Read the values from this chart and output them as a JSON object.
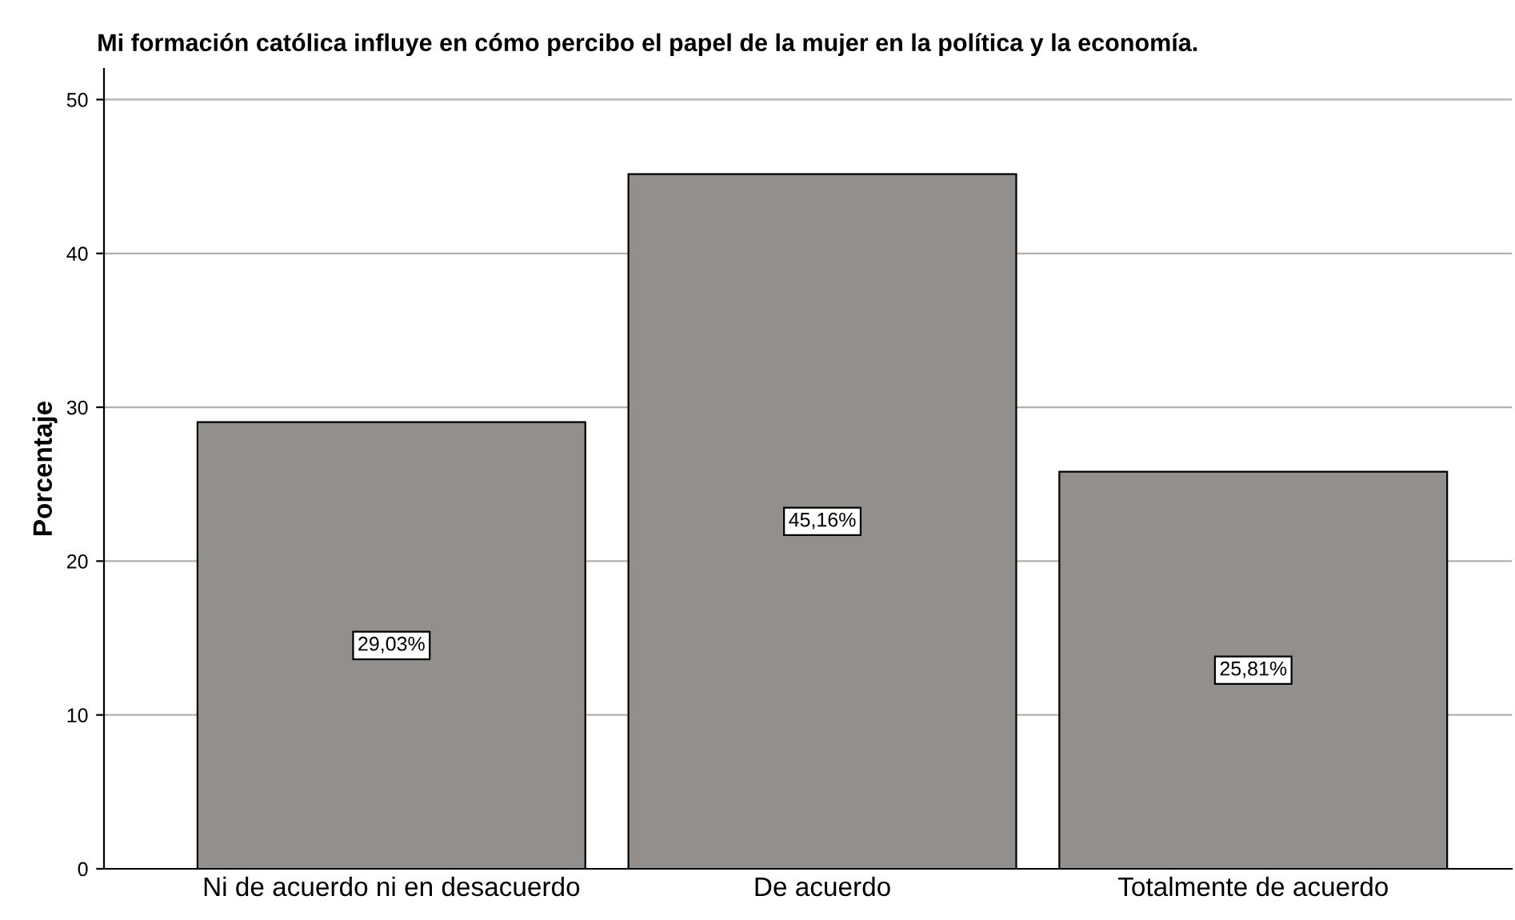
{
  "chart_data": {
    "type": "bar",
    "title": "Mi formación católica influye en cómo percibo el papel de la mujer en la política y la economía.",
    "ylabel": "Porcentaje",
    "categories": [
      "Ni de acuerdo ni en desacuerdo",
      "De acuerdo",
      "Totalmente de acuerdo"
    ],
    "values": [
      29.03,
      45.16,
      25.81
    ],
    "value_labels": [
      "29,03%",
      "45,16%",
      "25,81%"
    ],
    "color": "#938f8d",
    "ylim": [
      0,
      52
    ],
    "yticks": [
      0,
      10,
      20,
      30,
      40,
      50
    ],
    "grid": "y",
    "legend": false
  }
}
